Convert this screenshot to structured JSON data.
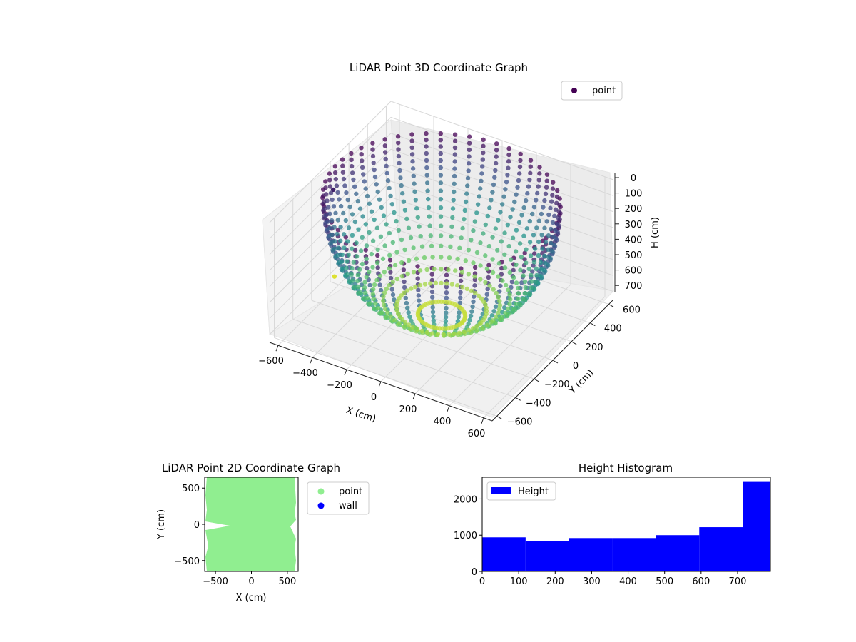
{
  "chart_data": [
    {
      "type": "scatter",
      "projection": "3d",
      "title": "LiDAR Point 3D Coordinate Graph",
      "xlabel": "X (cm)",
      "ylabel": "Y (cm)",
      "zlabel": "H (cm)",
      "xlim": [
        -650,
        650
      ],
      "ylim": [
        -650,
        650
      ],
      "zlim": [
        750,
        0
      ],
      "z_axis_inverted": true,
      "x_ticks": [
        "−600",
        "−400",
        "−200",
        "0",
        "200",
        "400",
        "600"
      ],
      "y_ticks": [
        "−600",
        "−400",
        "−200",
        "0",
        "200",
        "400",
        "600"
      ],
      "z_ticks": [
        "0",
        "100",
        "200",
        "300",
        "400",
        "500",
        "600",
        "700"
      ],
      "colormap": "viridis",
      "legend": {
        "entries": [
          "point"
        ],
        "placement": "top-right"
      },
      "series": [
        {
          "name": "point",
          "color": "#440154",
          "description_shape": "hemispherical bowl of vertical scan arcs, radius about 600, depth about 720",
          "sample_points": [
            {
              "x": -600,
              "y": 0,
              "h": 0
            },
            {
              "x": -550,
              "y": -250,
              "h": 200
            },
            {
              "x": -400,
              "y": -450,
              "h": 450
            },
            {
              "x": 0,
              "y": -600,
              "h": 0
            },
            {
              "x": 300,
              "y": -500,
              "h": 300
            },
            {
              "x": 550,
              "y": -200,
              "h": 150
            },
            {
              "x": 600,
              "y": 200,
              "h": 0
            },
            {
              "x": 400,
              "y": 450,
              "h": 300
            },
            {
              "x": 0,
              "y": 600,
              "h": 0
            },
            {
              "x": -350,
              "y": 450,
              "h": 250
            },
            {
              "x": 0,
              "y": 0,
              "h": 720
            },
            {
              "x": 100,
              "y": -100,
              "h": 650
            }
          ]
        }
      ]
    },
    {
      "type": "scatter",
      "title": "LiDAR Point 2D Coordinate Graph",
      "xlabel": "X (cm)",
      "ylabel": "Y (cm)",
      "xlim": [
        -650,
        650
      ],
      "ylim": [
        -650,
        650
      ],
      "x_ticks": [
        -500,
        0,
        500
      ],
      "y_ticks": [
        -500,
        0,
        500
      ],
      "legend": {
        "entries": [
          "point",
          "wall"
        ],
        "placement": "outside-right"
      },
      "series": [
        {
          "name": "point",
          "color": "#90ee90",
          "fill": "dense"
        },
        {
          "name": "wall",
          "color": "#0000ff",
          "values": []
        }
      ]
    },
    {
      "type": "histogram",
      "title": "Height Histogram",
      "xlabel": "",
      "ylabel": "",
      "xlim": [
        0,
        790
      ],
      "ylim": [
        0,
        2600
      ],
      "x_ticks": [
        0,
        100,
        200,
        300,
        400,
        500,
        600,
        700
      ],
      "y_ticks": [
        0,
        1000,
        2000
      ],
      "legend": {
        "entries": [
          "Height"
        ],
        "placement": "top-left"
      },
      "series": [
        {
          "name": "Height",
          "color": "#0000ff",
          "bins": [
            {
              "x0": 0,
              "x1": 119,
              "count": 940
            },
            {
              "x0": 119,
              "x1": 238,
              "count": 840
            },
            {
              "x0": 238,
              "x1": 357,
              "count": 920
            },
            {
              "x0": 357,
              "x1": 476,
              "count": 920
            },
            {
              "x0": 476,
              "x1": 595,
              "count": 1000
            },
            {
              "x0": 595,
              "x1": 714,
              "count": 1220
            },
            {
              "x0": 714,
              "x1": 790,
              "count": 2470
            }
          ]
        }
      ]
    }
  ]
}
